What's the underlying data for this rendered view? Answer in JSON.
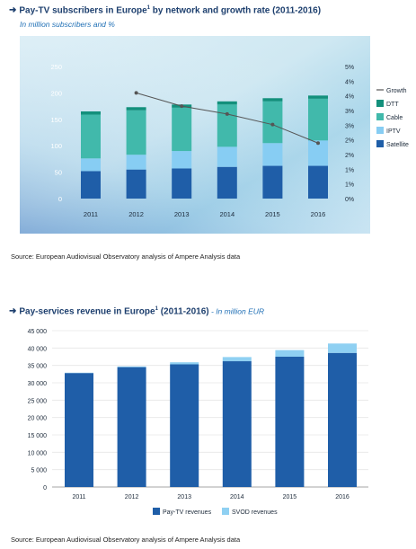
{
  "chart1": {
    "title_arrow": "➜",
    "title_a": "Pay-TV subscribers in Europe",
    "title_sup": "1",
    "title_b": " by network and growth rate (2011-2016)",
    "subtitle": "In million subscribers and %",
    "source": "Source: European Audiovisual Observatory analysis of Ampere Analysis data"
  },
  "chart2": {
    "title_arrow": "➜",
    "title_a": "Pay-services revenue in Europe",
    "title_sup": "1",
    "title_b": " (2011-2016)",
    "title_sub": " - In million EUR",
    "source": "Source: European Audiovisual Observatory analysis of Ampere Analysis data"
  },
  "chart_data": [
    {
      "type": "bar",
      "stacked": true,
      "categories": [
        "2011",
        "2012",
        "2013",
        "2014",
        "2015",
        "2016"
      ],
      "series": [
        {
          "name": "Satellite",
          "color": "#1f5ea8",
          "values": [
            52,
            55,
            57,
            60,
            62,
            62
          ]
        },
        {
          "name": "IPTV",
          "color": "#87cdf3",
          "values": [
            24,
            28,
            33,
            38,
            43,
            48
          ]
        },
        {
          "name": "Cable",
          "color": "#41b9ab",
          "values": [
            83,
            84,
            82,
            80,
            79,
            79
          ]
        },
        {
          "name": "DTT",
          "color": "#13907c",
          "values": [
            6,
            6,
            6,
            6,
            6,
            6
          ]
        }
      ],
      "line_series": {
        "name": "Growth",
        "color": "#555555",
        "axis": "right",
        "values": [
          null,
          4.0,
          3.5,
          3.2,
          2.8,
          2.1
        ]
      },
      "ylim": [
        0,
        250
      ],
      "yticks": [
        "0",
        "50",
        "100",
        "150",
        "200",
        "250"
      ],
      "y2lim": [
        0,
        5
      ],
      "y2ticks": [
        "0%",
        "1%",
        "1%",
        "2%",
        "2%",
        "3%",
        "3%",
        "4%",
        "4%",
        "5%"
      ],
      "legend": [
        "Growth",
        "DTT",
        "Cable",
        "IPTV",
        "Satellite"
      ],
      "legend_position": "right",
      "grid": false
    },
    {
      "type": "bar",
      "stacked": true,
      "categories": [
        "2011",
        "2012",
        "2013",
        "2014",
        "2015",
        "2016"
      ],
      "series": [
        {
          "name": "Pay-TV revenues",
          "color": "#1f5ea8",
          "values": [
            32800,
            34500,
            35300,
            36200,
            37500,
            38600
          ]
        },
        {
          "name": "SVOD revenues",
          "color": "#8fd0f2",
          "values": [
            100,
            200,
            600,
            1200,
            1900,
            2700
          ]
        }
      ],
      "ylim": [
        0,
        45000
      ],
      "yticks": [
        "0",
        "5 000",
        "10 000",
        "15 000",
        "20 000",
        "25 000",
        "30 000",
        "35 000",
        "40 000",
        "45 000"
      ],
      "legend": [
        "Pay-TV revenues",
        "SVOD revenues"
      ],
      "legend_position": "bottom",
      "grid": true
    }
  ]
}
